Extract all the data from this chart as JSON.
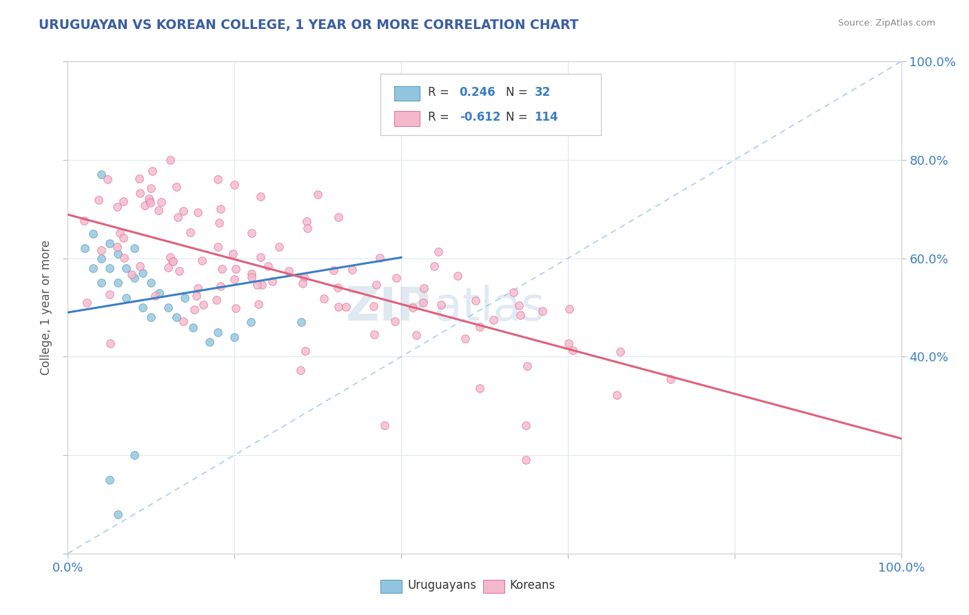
{
  "title": "URUGUAYAN VS KOREAN COLLEGE, 1 YEAR OR MORE CORRELATION CHART",
  "source": "Source: ZipAtlas.com",
  "ylabel": "College, 1 year or more",
  "watermark_zip": "ZIP",
  "watermark_atlas": "atlas",
  "legend_r1": "0.246",
  "legend_n1": "32",
  "legend_r2": "-0.612",
  "legend_n2": "114",
  "legend_label1": "Uruguayans",
  "legend_label2": "Koreans",
  "uruguayan_color": "#92C5DE",
  "uruguayan_edge_color": "#5B9DC0",
  "korean_color": "#F4B8CC",
  "korean_edge_color": "#E07898",
  "uruguayan_line_color": "#3A7EC6",
  "korean_line_color": "#E0607A",
  "diagonal_line_color": "#AACCEE",
  "text_color": "#3A5FA0",
  "title_color": "#3A5FA0",
  "source_color": "#888888",
  "ylabel_color": "#555555",
  "tick_color": "#3A7EC6",
  "grid_color": "#E0E8F0",
  "r_color": "#3A7EC6",
  "n_color": "#333333"
}
